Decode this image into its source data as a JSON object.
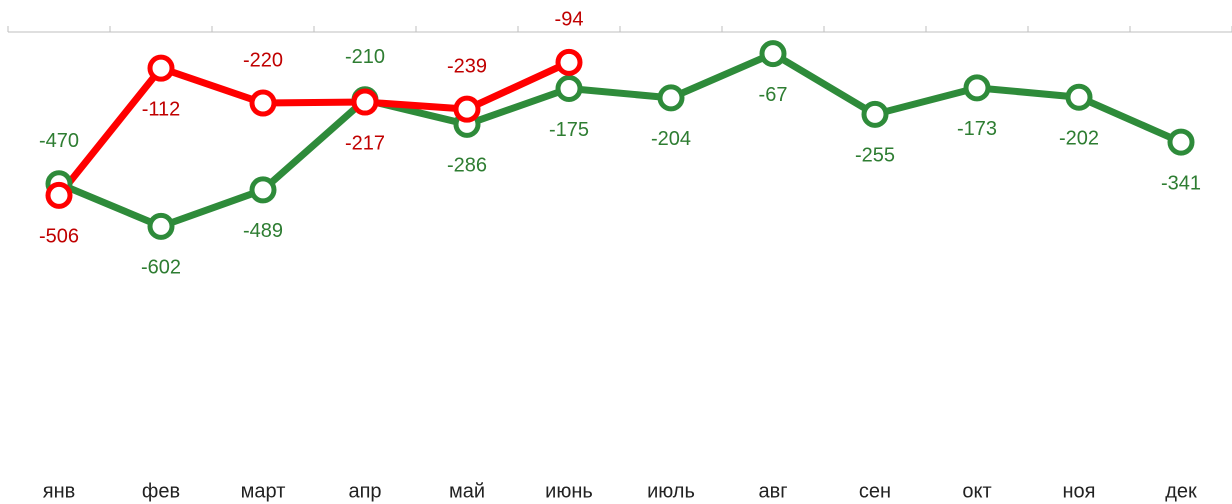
{
  "chart_data": {
    "type": "line",
    "categories": [
      "янв",
      "фев",
      "март",
      "апр",
      "май",
      "июнь",
      "июль",
      "авг",
      "сен",
      "окт",
      "ноя",
      "дек"
    ],
    "series": [
      {
        "color": "#2e8b3a",
        "label_color": "#2e7d32",
        "values": [
          -470,
          -602,
          -489,
          -210,
          -286,
          -175,
          -204,
          -67,
          -255,
          -173,
          -202,
          -341
        ]
      },
      {
        "color": "#ff0000",
        "label_color": "#c00000",
        "values": [
          -506,
          -112,
          -220,
          -217,
          -239,
          -94,
          null,
          null,
          null,
          null,
          null,
          null
        ]
      }
    ],
    "ylim": [
      -1400,
      0
    ]
  }
}
